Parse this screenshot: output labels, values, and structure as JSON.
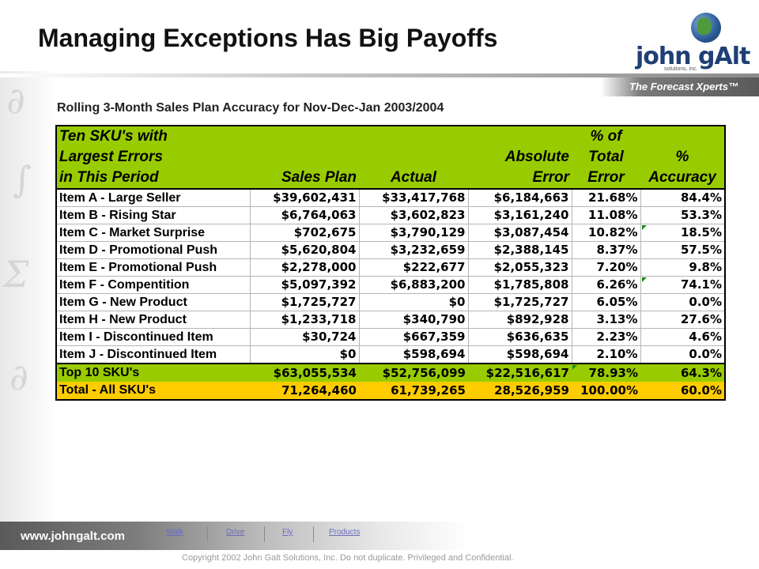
{
  "slide": {
    "title": "Managing Exceptions Has Big Payoffs",
    "subtitle": "Rolling 3-Month Sales Plan Accuracy for Nov-Dec-Jan 2003/2004"
  },
  "logo": {
    "name": "john gAlt",
    "sub": "solutions, inc.",
    "tagline": "The Forecast Xperts™"
  },
  "table": {
    "header": {
      "r1": {
        "c1": "Ten SKU's with",
        "c5": "% of"
      },
      "r2": {
        "c1": "Largest Errors",
        "c4": "Absolute",
        "c5": "Total",
        "c6": "%"
      },
      "r3": {
        "c1": "in This Period",
        "c2": "Sales Plan",
        "c3": "Actual",
        "c4": "Error",
        "c5": "Error",
        "c6": "Accuracy"
      }
    },
    "rows": [
      {
        "name": "Item A - Large Seller",
        "plan": "$39,602,431",
        "actual": "$33,417,768",
        "abs": "$6,184,663",
        "pct": "21.68%",
        "acc": "84.4%"
      },
      {
        "name": "Item B - Rising Star",
        "plan": "$6,764,063",
        "actual": "$3,602,823",
        "abs": "$3,161,240",
        "pct": "11.08%",
        "acc": "53.3%"
      },
      {
        "name": "Item C - Market Surprise",
        "plan": "$702,675",
        "actual": "$3,790,129",
        "abs": "$3,087,454",
        "pct": "10.82%",
        "acc": "18.5%"
      },
      {
        "name": "Item D - Promotional Push",
        "plan": "$5,620,804",
        "actual": "$3,232,659",
        "abs": "$2,388,145",
        "pct": "8.37%",
        "acc": "57.5%"
      },
      {
        "name": "Item E - Promotional Push",
        "plan": "$2,278,000",
        "actual": "$222,677",
        "abs": "$2,055,323",
        "pct": "7.20%",
        "acc": "9.8%"
      },
      {
        "name": "Item F - Compentition",
        "plan": "$5,097,392",
        "actual": "$6,883,200",
        "abs": "$1,785,808",
        "pct": "6.26%",
        "acc": "74.1%"
      },
      {
        "name": "Item G - New Product",
        "plan": "$1,725,727",
        "actual": "$0",
        "abs": "$1,725,727",
        "pct": "6.05%",
        "acc": "0.0%"
      },
      {
        "name": "Item H - New Product",
        "plan": "$1,233,718",
        "actual": "$340,790",
        "abs": "$892,928",
        "pct": "3.13%",
        "acc": "27.6%"
      },
      {
        "name": "Item I - Discontinued Item",
        "plan": "$30,724",
        "actual": "$667,359",
        "abs": "$636,635",
        "pct": "2.23%",
        "acc": "4.6%"
      },
      {
        "name": "Item J - Discontinued Item",
        "plan": "$0",
        "actual": "$598,694",
        "abs": "$598,694",
        "pct": "2.10%",
        "acc": "0.0%"
      }
    ],
    "top10": {
      "name": "Top 10 SKU's",
      "plan": "$63,055,534",
      "actual": "$52,756,099",
      "abs": "$22,516,617",
      "pct": "78.93%",
      "acc": "64.3%"
    },
    "total": {
      "name": "Total - All SKU's",
      "plan": "71,264,460",
      "actual": "61,739,265",
      "abs": "28,526,959",
      "pct": "100.00%",
      "acc": "60.0%"
    }
  },
  "footer": {
    "website": "www.johngalt.com",
    "nav": [
      "Walk",
      "Drive",
      "Fly",
      "Products"
    ],
    "copyright": "Copyright 2002 John Galt Solutions, Inc. Do not duplicate. Privileged and Confidential."
  },
  "colors": {
    "header_green": "#99cc00",
    "total_yellow": "#ffcc00",
    "title_text": "#111111",
    "link": "#6b6bc0"
  }
}
